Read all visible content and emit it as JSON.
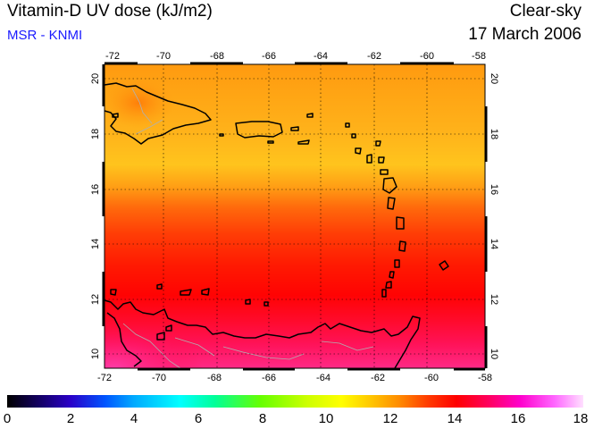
{
  "header": {
    "title": "Vitamin-D UV dose (kJ/m2)",
    "source": "MSR - KNMI",
    "condition": "Clear-sky",
    "date": "17 March 2006"
  },
  "map": {
    "lon_ticks": [
      "-72",
      "-70",
      "-68",
      "-66",
      "-64",
      "-62",
      "-60",
      "-58"
    ],
    "lat_ticks": [
      "10",
      "12",
      "14",
      "16",
      "18",
      "20"
    ],
    "lon_range": [
      -72,
      -58
    ],
    "lat_range": [
      9.5,
      20.5
    ],
    "gridlines": true
  },
  "colorbar": {
    "labels": [
      "0",
      "2",
      "4",
      "6",
      "8",
      "10",
      "12",
      "14",
      "16",
      "18"
    ],
    "range": [
      0,
      18
    ],
    "colors": [
      "#000000",
      "#2a00c8",
      "#00aaff",
      "#00ffff",
      "#66ff00",
      "#ffff00",
      "#ff8c00",
      "#ff0000",
      "#ff00cc",
      "#ffe0ff"
    ]
  }
}
